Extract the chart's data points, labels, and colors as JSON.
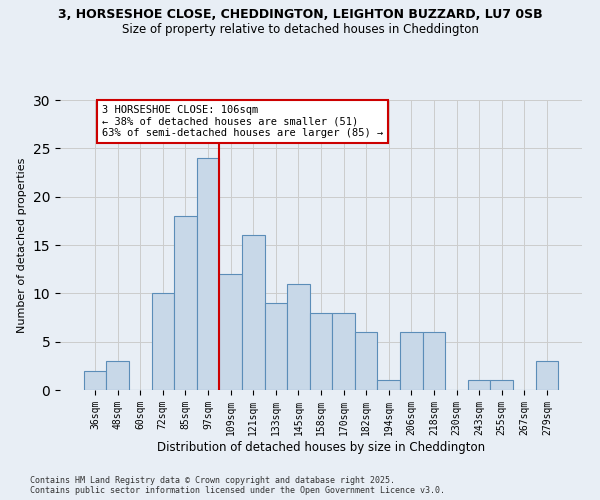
{
  "title_line1": "3, HORSESHOE CLOSE, CHEDDINGTON, LEIGHTON BUZZARD, LU7 0SB",
  "title_line2": "Size of property relative to detached houses in Cheddington",
  "xlabel": "Distribution of detached houses by size in Cheddington",
  "ylabel": "Number of detached properties",
  "categories": [
    "36sqm",
    "48sqm",
    "60sqm",
    "72sqm",
    "85sqm",
    "97sqm",
    "109sqm",
    "121sqm",
    "133sqm",
    "145sqm",
    "158sqm",
    "170sqm",
    "182sqm",
    "194sqm",
    "206sqm",
    "218sqm",
    "230sqm",
    "243sqm",
    "255sqm",
    "267sqm",
    "279sqm"
  ],
  "values": [
    2,
    3,
    0,
    10,
    18,
    24,
    12,
    16,
    9,
    11,
    8,
    8,
    6,
    1,
    6,
    6,
    0,
    1,
    1,
    0,
    3
  ],
  "bar_color": "#c8d8e8",
  "bar_edge_color": "#5b8db8",
  "grid_color": "#cccccc",
  "vline_x_idx": 6,
  "vline_color": "#cc0000",
  "annotation_text": "3 HORSESHOE CLOSE: 106sqm\n← 38% of detached houses are smaller (51)\n63% of semi-detached houses are larger (85) →",
  "annotation_box_facecolor": "#ffffff",
  "annotation_box_edgecolor": "#cc0000",
  "ylim": [
    0,
    30
  ],
  "yticks": [
    0,
    5,
    10,
    15,
    20,
    25,
    30
  ],
  "footer_line1": "Contains HM Land Registry data © Crown copyright and database right 2025.",
  "footer_line2": "Contains public sector information licensed under the Open Government Licence v3.0.",
  "bg_color": "#e8eef5",
  "title_fontsize": 9,
  "subtitle_fontsize": 8.5,
  "ylabel_fontsize": 8,
  "xlabel_fontsize": 8.5,
  "tick_fontsize": 7,
  "annotation_fontsize": 7.5,
  "footer_fontsize": 6
}
